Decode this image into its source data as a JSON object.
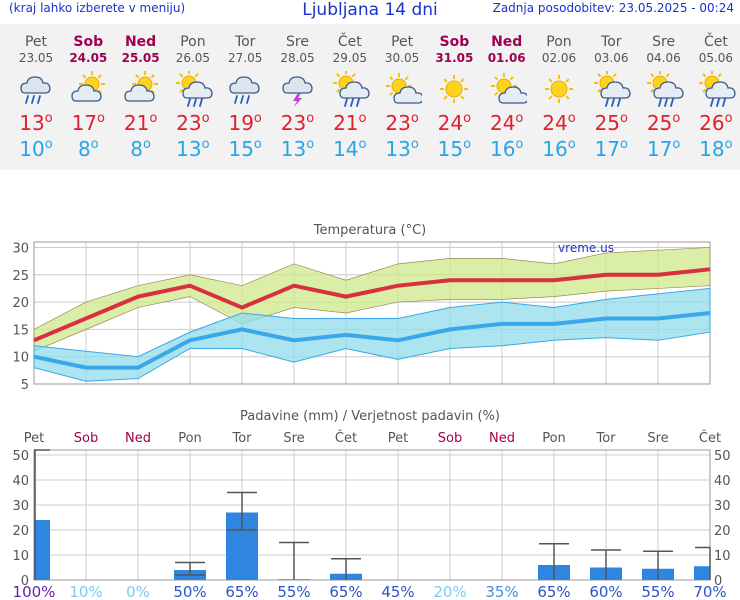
{
  "header": {
    "menu_note": "(kraj lahko izberete v meniju)",
    "title": "Ljubljana 14 dni",
    "updated": "Zadnja posodobitev: 23.05.2025 - 00:24"
  },
  "days": [
    {
      "name": "Pet",
      "date": "23.05",
      "weekend": false,
      "icon": "rain-cloud-icon",
      "max": "13",
      "min": "10"
    },
    {
      "name": "Sob",
      "date": "24.05",
      "weekend": true,
      "icon": "partly-cloudy-icon",
      "max": "17",
      "min": "8"
    },
    {
      "name": "Ned",
      "date": "25.05",
      "weekend": true,
      "icon": "partly-cloudy-icon",
      "max": "21",
      "min": "8"
    },
    {
      "name": "Pon",
      "date": "26.05",
      "weekend": false,
      "icon": "sun-rain-icon",
      "max": "23",
      "min": "13"
    },
    {
      "name": "Tor",
      "date": "27.05",
      "weekend": false,
      "icon": "rain-cloud-icon",
      "max": "19",
      "min": "15"
    },
    {
      "name": "Sre",
      "date": "28.05",
      "weekend": false,
      "icon": "thunderstorm-icon",
      "max": "23",
      "min": "13"
    },
    {
      "name": "Čet",
      "date": "29.05",
      "weekend": false,
      "icon": "sun-rain-icon",
      "max": "21",
      "min": "14"
    },
    {
      "name": "Pet",
      "date": "30.05",
      "weekend": false,
      "icon": "sun-cloud-icon",
      "max": "23",
      "min": "13"
    },
    {
      "name": "Sob",
      "date": "31.05",
      "weekend": true,
      "icon": "sun-icon",
      "max": "24",
      "min": "15"
    },
    {
      "name": "Ned",
      "date": "01.06",
      "weekend": true,
      "icon": "sun-cloud-icon",
      "max": "24",
      "min": "16"
    },
    {
      "name": "Pon",
      "date": "02.06",
      "weekend": false,
      "icon": "sun-icon",
      "max": "24",
      "min": "16"
    },
    {
      "name": "Tor",
      "date": "03.06",
      "weekend": false,
      "icon": "sun-rain-icon",
      "max": "25",
      "min": "17"
    },
    {
      "name": "Sre",
      "date": "04.06",
      "weekend": false,
      "icon": "sun-rain-icon",
      "max": "25",
      "min": "17"
    },
    {
      "name": "Čet",
      "date": "05.06",
      "weekend": false,
      "icon": "sun-rain-icon",
      "max": "26",
      "min": "18"
    }
  ],
  "colors": {
    "text_blue": "#1a33c8",
    "weekend": "#a00050",
    "max_line": "#d83040",
    "max_band": "#cde88a",
    "min_line": "#3aa8e8",
    "min_band": "#90dcea",
    "bar": "#2f86e0",
    "grid": "#cccccc"
  },
  "chart_data": [
    {
      "type": "line",
      "title": "Temperatura (°C)",
      "watermark": "vreme.us",
      "x": [
        "23.05",
        "24.05",
        "25.05",
        "26.05",
        "27.05",
        "28.05",
        "29.05",
        "30.05",
        "31.05",
        "01.06",
        "02.06",
        "03.06",
        "04.06",
        "05.06"
      ],
      "ylim": [
        5,
        31
      ],
      "yticks": [
        5,
        10,
        15,
        20,
        25,
        30
      ],
      "series": [
        {
          "values": [
            13,
            17,
            21,
            23,
            19,
            23,
            21,
            23,
            24,
            24,
            24,
            25,
            25,
            26
          ],
          "band_low": [
            11,
            15,
            19,
            21,
            16,
            19,
            18,
            20,
            20.5,
            20.5,
            21,
            22,
            22.5,
            23
          ],
          "band_high": [
            15,
            20,
            23,
            25,
            23,
            27,
            24,
            27,
            28,
            28,
            27,
            29,
            29.5,
            30
          ]
        },
        {
          "values": [
            10,
            8,
            8,
            13,
            15,
            13,
            14,
            13,
            15,
            16,
            16,
            17,
            17,
            18
          ],
          "band_low": [
            8,
            5.5,
            6,
            11.5,
            11.5,
            9,
            11.5,
            9.5,
            11.5,
            12,
            13,
            13.5,
            13,
            14.5
          ],
          "band_high": [
            12,
            11,
            10,
            14.5,
            18,
            17,
            17,
            17,
            19,
            20,
            19,
            20.5,
            21.5,
            22.5
          ]
        }
      ],
      "grid": true
    },
    {
      "type": "bar",
      "title": "Padavine (mm) / Verjetnost padavin (%)",
      "categories": [
        "Pet",
        "Sob",
        "Ned",
        "Pon",
        "Tor",
        "Sre",
        "Čet",
        "Pet",
        "Sob",
        "Ned",
        "Pon",
        "Tor",
        "Sre",
        "Čet"
      ],
      "weekend": [
        false,
        true,
        true,
        false,
        false,
        false,
        false,
        false,
        true,
        true,
        false,
        false,
        false,
        false
      ],
      "values": [
        24,
        0,
        0,
        4,
        27,
        0.3,
        2.5,
        0,
        0,
        0,
        6,
        5,
        4.5,
        5.5
      ],
      "err_low": [
        0,
        0,
        0,
        2,
        20,
        0,
        0,
        0,
        0,
        0,
        0,
        0,
        0,
        0
      ],
      "err_high": [
        52,
        0,
        0,
        7,
        35,
        15,
        8.5,
        0,
        0,
        0,
        14.5,
        12,
        11.5,
        13
      ],
      "probability": [
        "100%",
        "10%",
        "0%",
        "50%",
        "65%",
        "55%",
        "65%",
        "45%",
        "20%",
        "35%",
        "65%",
        "60%",
        "55%",
        "70%"
      ],
      "ylim": [
        0,
        52
      ],
      "yticks": [
        0,
        10,
        20,
        30,
        40,
        50
      ],
      "grid": true
    }
  ]
}
